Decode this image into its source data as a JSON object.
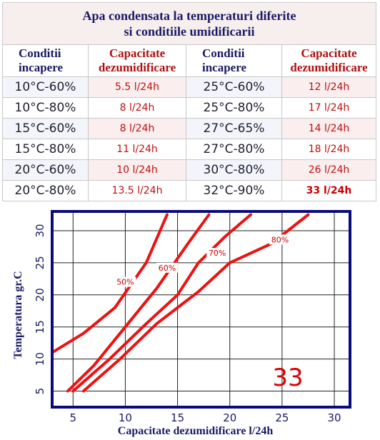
{
  "table": {
    "title_line1": "Apa condensata la temperaturi diferite",
    "title_line2": "si conditiile umidificarii",
    "headers": {
      "cond_line1": "Conditii",
      "cond_line2": "incapere",
      "cap_line1": "Capacitate",
      "cap_line2": "dezumidificare"
    },
    "rows": [
      {
        "c1": "10°C-60%",
        "v1": "5.5 l/24h",
        "c2": "25°C-60%",
        "v2": "12 l/24h"
      },
      {
        "c1": "10°C-80%",
        "v1": "8 l/24h",
        "c2": "25°C-80%",
        "v2": "17 l/24h"
      },
      {
        "c1": "15°C-60%",
        "v1": "8 l/24h",
        "c2": "27°C-65%",
        "v2": "14 l/24h"
      },
      {
        "c1": "15°C-80%",
        "v1": "11 l/24h",
        "c2": "27°C-80%",
        "v2": "18 l/24h"
      },
      {
        "c1": "20°C-60%",
        "v1": "10 l/24h",
        "c2": "30°C-80%",
        "v2": "26 l/24h"
      },
      {
        "c1": "20°C-80%",
        "v1": "13.5 l/24h",
        "c2": "32°C-90%",
        "v2": "33 l/24h"
      }
    ]
  },
  "chart_data": {
    "type": "line",
    "xlabel": "Capacitate dezumidificare l/24h",
    "ylabel": "Temperatura gr.C",
    "xlim": [
      3,
      31.5
    ],
    "ylim": [
      2.5,
      33
    ],
    "xticks": [
      5,
      10,
      15,
      20,
      25,
      30
    ],
    "yticks": [
      5,
      10,
      15,
      20,
      25,
      30
    ],
    "grid": true,
    "big_label": "33",
    "colors": {
      "axis": "#0a0a80",
      "grid": "#222222",
      "series": "#ee1111",
      "label": "#cc0000",
      "axis_text": "#1a1a66"
    },
    "series": [
      {
        "name": "50%",
        "points": [
          [
            3,
            11
          ],
          [
            6,
            14
          ],
          [
            9,
            18
          ],
          [
            12,
            25
          ],
          [
            14,
            32.5
          ]
        ]
      },
      {
        "name": "60%",
        "points": [
          [
            4.5,
            5
          ],
          [
            7,
            9
          ],
          [
            10,
            15
          ],
          [
            13,
            21
          ],
          [
            16,
            28
          ],
          [
            18,
            32.5
          ]
        ]
      },
      {
        "name": "70%",
        "points": [
          [
            5,
            5
          ],
          [
            8.5,
            10
          ],
          [
            12,
            15.5
          ],
          [
            15,
            20
          ],
          [
            17,
            25
          ],
          [
            19.5,
            29
          ],
          [
            22,
            32.5
          ]
        ]
      },
      {
        "name": "80%",
        "points": [
          [
            6,
            5
          ],
          [
            9.5,
            10
          ],
          [
            13,
            15.5
          ],
          [
            17,
            20.5
          ],
          [
            20,
            25
          ],
          [
            24,
            28
          ],
          [
            27.5,
            32.5
          ]
        ]
      }
    ]
  }
}
